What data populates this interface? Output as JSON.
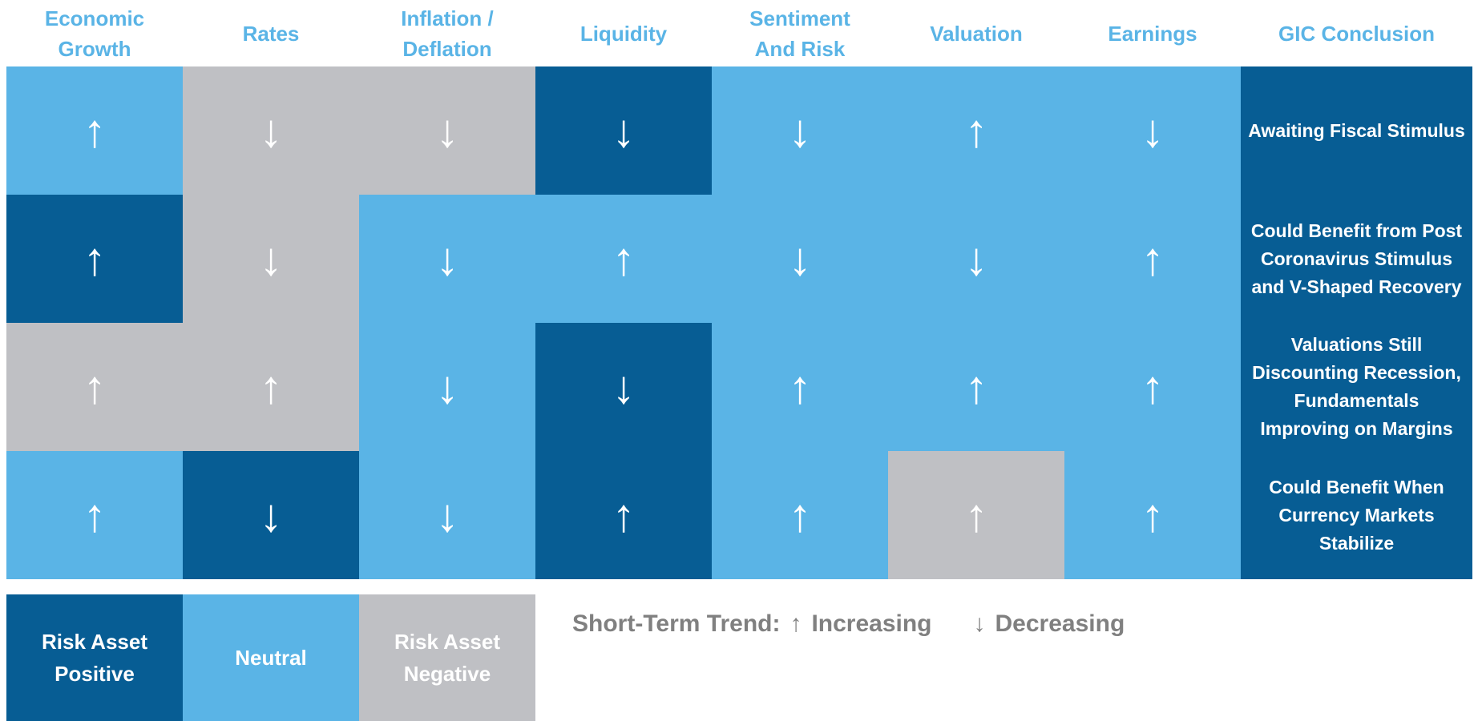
{
  "columns": [
    "Economic Growth",
    "Rates",
    "Inflation / Deflation",
    "Liquidity",
    "Sentiment And Risk",
    "Valuation",
    "Earnings",
    "GIC Conclusion"
  ],
  "rows": [
    {
      "cells": [
        {
          "arrow": "↑",
          "color": "#5ab4e6"
        },
        {
          "arrow": "↓",
          "color": "#bfc0c4"
        },
        {
          "arrow": "↓",
          "color": "#bfc0c4"
        },
        {
          "arrow": "↓",
          "color": "#075d94"
        },
        {
          "arrow": "↓",
          "color": "#5ab4e6"
        },
        {
          "arrow": "↑",
          "color": "#5ab4e6"
        },
        {
          "arrow": "↓",
          "color": "#5ab4e6"
        }
      ],
      "conclusion": "Awaiting  Fiscal Stimulus"
    },
    {
      "cells": [
        {
          "arrow": "↑",
          "color": "#075d94"
        },
        {
          "arrow": "↓",
          "color": "#bfc0c4"
        },
        {
          "arrow": "↓",
          "color": "#5ab4e6"
        },
        {
          "arrow": "↑",
          "color": "#5ab4e6"
        },
        {
          "arrow": "↓",
          "color": "#5ab4e6"
        },
        {
          "arrow": "↓",
          "color": "#5ab4e6"
        },
        {
          "arrow": "↑",
          "color": "#5ab4e6"
        }
      ],
      "conclusion": "Could Benefit from Post Coronavirus Stimulus and V-Shaped Recovery"
    },
    {
      "cells": [
        {
          "arrow": "↑",
          "color": "#bfc0c4"
        },
        {
          "arrow": "↑",
          "color": "#bfc0c4"
        },
        {
          "arrow": "↓",
          "color": "#5ab4e6"
        },
        {
          "arrow": "↓",
          "color": "#075d94"
        },
        {
          "arrow": "↑",
          "color": "#5ab4e6"
        },
        {
          "arrow": "↑",
          "color": "#5ab4e6"
        },
        {
          "arrow": "↑",
          "color": "#5ab4e6"
        }
      ],
      "conclusion": "Valuations Still Discounting Recession, Fundamentals Improving on Margins"
    },
    {
      "cells": [
        {
          "arrow": "↑",
          "color": "#5ab4e6"
        },
        {
          "arrow": "↓",
          "color": "#075d94"
        },
        {
          "arrow": "↓",
          "color": "#5ab4e6"
        },
        {
          "arrow": "↑",
          "color": "#075d94"
        },
        {
          "arrow": "↑",
          "color": "#5ab4e6"
        },
        {
          "arrow": "↑",
          "color": "#bfc0c4"
        },
        {
          "arrow": "↑",
          "color": "#5ab4e6"
        }
      ],
      "conclusion": "Could Benefit When Currency Markets Stabilize"
    }
  ],
  "conclusion_color": "#075d94",
  "legend": [
    {
      "label": "Risk Asset Positive",
      "color": "#075d94"
    },
    {
      "label": "Neutral",
      "color": "#5ab4e6"
    },
    {
      "label": "Risk Asset Negative",
      "color": "#bfc0c4"
    }
  ],
  "trend": {
    "label": "Short-Term Trend:",
    "items": [
      {
        "arrow": "↑",
        "label": "Increasing"
      },
      {
        "arrow": "↓",
        "label": "Decreasing"
      }
    ]
  }
}
